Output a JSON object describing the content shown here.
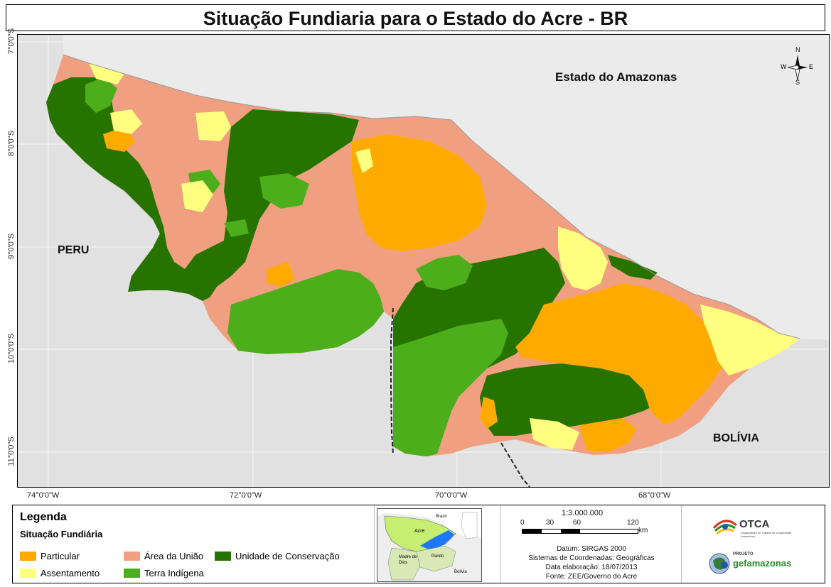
{
  "title": "Situação Fundiaria para o Estado do Acre - BR",
  "map": {
    "lat_labels": [
      "7°0'0\"S",
      "8°0'0\"S",
      "9°0'0\"S",
      "10°0'0\"S",
      "11°0'0\"S"
    ],
    "lon_labels": [
      "74°0'0\"W",
      "72°0'0\"W",
      "70°0'0\"W",
      "68°0'0\"W"
    ],
    "place_labels": {
      "amazonas": "Estado do Amazonas",
      "peru": "PERU",
      "bolivia": "BOLÍVIA"
    },
    "compass": {
      "n": "N",
      "s": "S",
      "e": "E",
      "w": "W"
    }
  },
  "colors": {
    "particular": "#ffaa00",
    "area_uniao": "#f0a080",
    "unidade_conservacao": "#267300",
    "assentamento": "#ffff80",
    "terra_indigena": "#4cae1a",
    "background": "#e1e1e1",
    "acre_inset": "#c6ee70",
    "inset_blue": "#1e78ff"
  },
  "legend": {
    "title": "Legenda",
    "subtitle": "Situação Fundiária",
    "items": {
      "particular": "Particular",
      "area_uniao": "Área da União",
      "unidade_conservacao": "Unidade de Conservação",
      "assentamento": "Assentamento",
      "terra_indigena": "Terra Indígena"
    }
  },
  "inset": {
    "brasil": "Brasil",
    "acre": "Acre",
    "madre_de_dios": "Madre de Dios",
    "pando": "Pando",
    "bolivia": "Bolivia"
  },
  "scale": {
    "ratio": "1:3.000.000",
    "ticks": [
      "0",
      "30",
      "60",
      "120"
    ],
    "unit": "km"
  },
  "info": {
    "datum": "Datum: SIRGAS 2000",
    "sistema": "Sistemas de Coordenadas: Geográficas",
    "data": "Data elaboração: 18/07/2013",
    "fonte": "Fonte: ZEE/Governo do Acre"
  },
  "logos": {
    "otca": "OTCA",
    "otca_sub": "Organização do Tratado de Cooperação Amazônica",
    "projeto": "PROJETO",
    "gef": "gefamazonas"
  }
}
